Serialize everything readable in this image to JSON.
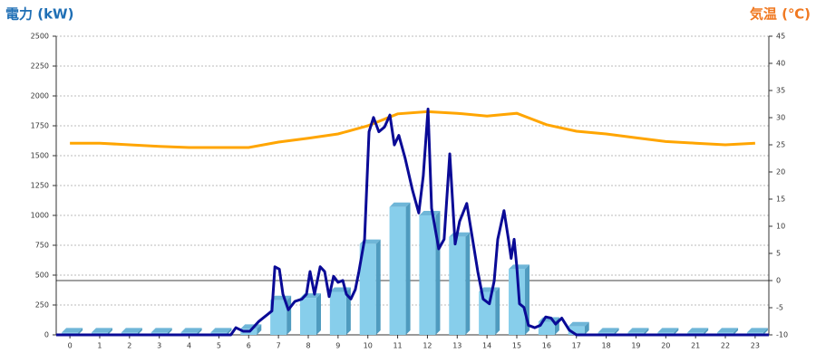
{
  "chart_data": {
    "type": "bar",
    "y_label": "電力 (kW)",
    "y2_label": "気温 (℃)",
    "categories": [
      "0",
      "1",
      "2",
      "3",
      "4",
      "5",
      "6",
      "7",
      "8",
      "9",
      "10",
      "11",
      "12",
      "13",
      "14",
      "15",
      "16",
      "17",
      "18",
      "19",
      "20",
      "21",
      "22",
      "23"
    ],
    "xlim": [
      -0.46,
      23.46
    ],
    "ylim": [
      0,
      2500
    ],
    "yticks": [
      0,
      250,
      500,
      750,
      1000,
      1250,
      1500,
      1750,
      2000,
      2250,
      2500
    ],
    "y2lim": [
      -10,
      45
    ],
    "y2ticks": [
      -10,
      -5,
      0,
      5,
      10,
      15,
      20,
      25,
      30,
      35,
      40,
      45
    ],
    "y2_baseline": 0,
    "grid": true,
    "bars": {
      "color": "#87ceeb",
      "values": [
        20,
        20,
        20,
        20,
        20,
        20,
        50,
        290,
        310,
        360,
        760,
        1070,
        1000,
        820,
        360,
        550,
        110,
        70,
        20,
        20,
        20,
        20,
        20,
        20
      ]
    },
    "power_line": {
      "color": "#0a0a96",
      "x": [
        -0.46,
        5.4,
        5.57,
        5.82,
        6.04,
        6.33,
        6.63,
        6.78,
        6.88,
        7.03,
        7.15,
        7.33,
        7.55,
        7.79,
        7.94,
        8.06,
        8.21,
        8.4,
        8.55,
        8.7,
        8.85,
        9.0,
        9.16,
        9.28,
        9.43,
        9.58,
        9.7,
        9.89,
        10.04,
        10.19,
        10.37,
        10.56,
        10.74,
        10.89,
        11.04,
        11.25,
        11.5,
        11.71,
        11.86,
        12.02,
        12.14,
        12.38,
        12.56,
        12.75,
        12.93,
        13.08,
        13.32,
        13.47,
        13.69,
        13.87,
        14.08,
        14.24,
        14.36,
        14.57,
        14.72,
        14.81,
        14.91,
        15.0,
        15.09,
        15.24,
        15.39,
        15.6,
        15.79,
        15.97,
        16.15,
        16.3,
        16.51,
        16.76,
        17.0,
        23.46
      ],
      "values": [
        0,
        0,
        60,
        30,
        30,
        110,
        170,
        200,
        570,
        550,
        340,
        210,
        280,
        300,
        340,
        530,
        340,
        570,
        530,
        320,
        490,
        440,
        455,
        340,
        300,
        380,
        530,
        800,
        1700,
        1820,
        1700,
        1740,
        1840,
        1590,
        1670,
        1480,
        1210,
        1020,
        1330,
        1890,
        1060,
        720,
        800,
        1515,
        760,
        950,
        1100,
        870,
        530,
        300,
        260,
        450,
        800,
        1040,
        800,
        640,
        800,
        570,
        260,
        230,
        80,
        60,
        80,
        150,
        140,
        90,
        140,
        40,
        0,
        0
      ]
    },
    "temp_line": {
      "color": "#ffa500",
      "axis": "y2",
      "values": [
        25.3,
        25.3,
        25,
        24.7,
        24.5,
        24.5,
        24.5,
        25.5,
        26.2,
        27,
        28.5,
        30.7,
        31.1,
        30.8,
        30.3,
        30.8,
        28.7,
        27.5,
        27,
        26.3,
        25.6,
        25.3,
        25,
        25.3
      ]
    }
  }
}
